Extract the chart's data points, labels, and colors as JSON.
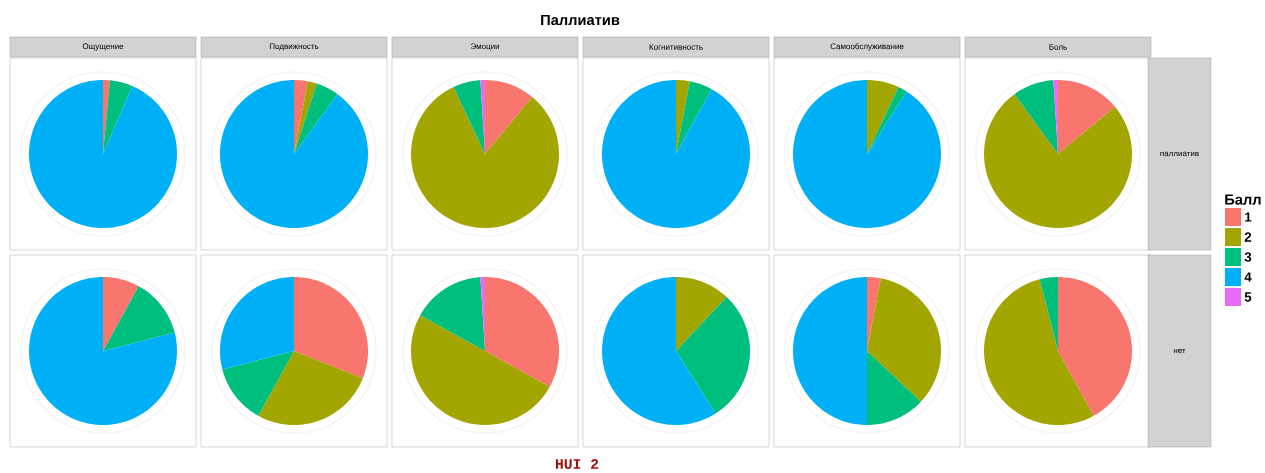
{
  "chart_data": [
    {
      "type": "pie",
      "title": "Ощущение",
      "annotations": [
        "Паллиатив",
        "HUI 2"
      ],
      "categories": [
        null,
        null,
        null,
        null,
        null
      ],
      "values": [
        1.5,
        0,
        5,
        93.5,
        0
      ],
      "colors": [
        "#f8766d",
        "#a3a500",
        "#00bf7d",
        "#00b0f6",
        "#e76bf3"
      ]
    },
    {
      "type": "pie",
      "title": "Подвижность",
      "categories": [
        null,
        null,
        null,
        null,
        null
      ],
      "values": [
        3,
        2,
        5,
        90,
        0
      ],
      "colors": [
        "#f8766d",
        "#a3a500",
        "#00bf7d",
        "#00b0f6",
        "#e76bf3"
      ]
    },
    {
      "type": "pie",
      "title": "Эмоции",
      "categories": [
        null,
        null,
        null,
        null,
        null
      ],
      "values": [
        11,
        82,
        6,
        0,
        1
      ],
      "colors": [
        "#f8766d",
        "#a3a500",
        "#00bf7d",
        "#00b0f6",
        "#e76bf3"
      ]
    },
    {
      "type": "pie",
      "title": "Когнитивность",
      "categories": [
        null,
        null,
        null,
        null,
        null
      ],
      "values": [
        0,
        3,
        5,
        92,
        0
      ],
      "colors": [
        "#f8766d",
        "#a3a500",
        "#00bf7d",
        "#00b0f6",
        "#e76bf3"
      ]
    },
    {
      "type": "pie",
      "title": "Самообслуживание",
      "categories": [
        null,
        null,
        null,
        null,
        null
      ],
      "values": [
        0,
        7,
        2,
        91,
        0
      ],
      "colors": [
        "#f8766d",
        "#a3a500",
        "#00bf7d",
        "#00b0f6",
        "#e76bf3"
      ]
    },
    {
      "type": "pie",
      "title": "Боль",
      "ylabel": "паллиатив",
      "categories": [
        null,
        null,
        null,
        null,
        null
      ],
      "values": [
        14,
        76,
        9,
        0,
        1
      ],
      "colors": [
        "#f8766d",
        "#a3a500",
        "#00bf7d",
        "#00b0f6",
        "#e76bf3"
      ]
    },
    {
      "type": "pie",
      "categories": [
        null,
        null,
        null,
        null,
        null
      ],
      "values": [
        8,
        0,
        13,
        79,
        0
      ],
      "colors": [
        "#f8766d",
        "#a3a500",
        "#00bf7d",
        "#00b0f6",
        "#e76bf3"
      ]
    },
    {
      "type": "pie",
      "categories": [
        null,
        null,
        null,
        null,
        null
      ],
      "values": [
        31,
        27,
        13,
        29,
        0
      ],
      "colors": [
        "#f8766d",
        "#a3a500",
        "#00bf7d",
        "#00b0f6",
        "#e76bf3"
      ]
    },
    {
      "type": "pie",
      "categories": [
        null,
        null,
        null,
        null,
        null
      ],
      "values": [
        33,
        50,
        16,
        0,
        1
      ],
      "colors": [
        "#f8766d",
        "#a3a500",
        "#00bf7d",
        "#00b0f6",
        "#e76bf3"
      ]
    },
    {
      "type": "pie",
      "categories": [
        null,
        null,
        null,
        null,
        null
      ],
      "values": [
        0,
        12,
        29,
        59,
        0
      ],
      "colors": [
        "#f8766d",
        "#a3a500",
        "#00bf7d",
        "#00b0f6",
        "#e76bf3"
      ]
    },
    {
      "type": "pie",
      "categories": [
        null,
        null,
        null,
        null,
        null
      ],
      "values": [
        3,
        34,
        13,
        50,
        0
      ],
      "colors": [
        "#f8766d",
        "#a3a500",
        "#00bf7d",
        "#00b0f6",
        "#e76bf3"
      ]
    },
    {
      "type": "pie",
      "ylabel": "нет",
      "legend_title": "Балл",
      "legend": "right",
      "categories": [
        "1",
        "2",
        "3",
        "4",
        "5"
      ],
      "values": [
        42,
        54,
        4,
        0,
        0
      ],
      "colors": [
        "#f8766d",
        "#a3a500",
        "#00bf7d",
        "#00b0f6",
        "#e76bf3"
      ]
    }
  ]
}
